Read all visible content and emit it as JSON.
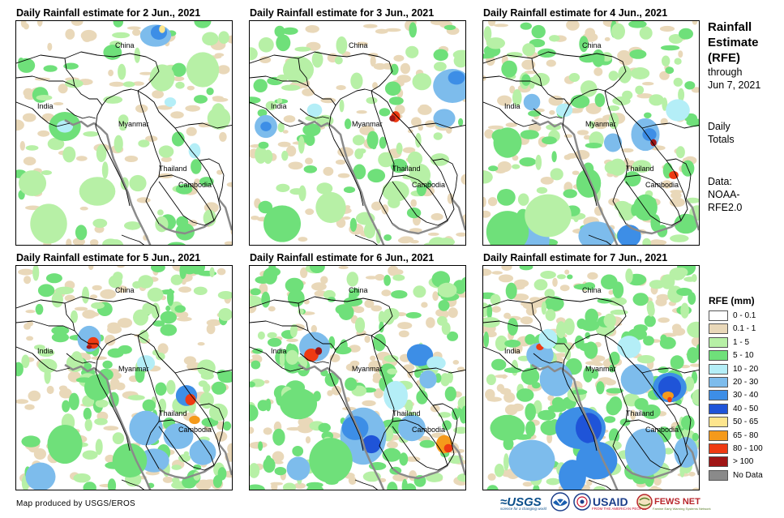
{
  "panels": [
    {
      "title": "Daily Rainfall estimate for 2 Jun., 2021",
      "intensity": 0
    },
    {
      "title": "Daily Rainfall estimate for 3 Jun., 2021",
      "intensity": 1
    },
    {
      "title": "Daily Rainfall estimate for 4 Jun., 2021",
      "intensity": 2
    },
    {
      "title": "Daily Rainfall estimate for 5 Jun., 2021",
      "intensity": 3
    },
    {
      "title": "Daily Rainfall estimate for 6 Jun., 2021",
      "intensity": 4
    },
    {
      "title": "Daily Rainfall estimate for 7 Jun., 2021",
      "intensity": 5
    }
  ],
  "places": {
    "china": "China",
    "india": "India",
    "myanmar": "Myanmar",
    "thailand": "Thailand",
    "cambodia": "Cambodia"
  },
  "sidebar": {
    "title_line1": "Rainfall",
    "title_line2": "Estimate",
    "title_line3": "(RFE)",
    "through": "through",
    "date": "Jun 7, 2021",
    "daily": "Daily",
    "totals": "Totals",
    "data_label": "Data:",
    "data_source1": "NOAA-",
    "data_source2": "RFE2.0"
  },
  "legend": {
    "title": "RFE (mm)",
    "items": [
      {
        "label": "0 - 0.1",
        "color": "#ffffff"
      },
      {
        "label": "0.1 - 1",
        "color": "#e9d8b9"
      },
      {
        "label": "1 - 5",
        "color": "#b7f0a6"
      },
      {
        "label": "5 - 10",
        "color": "#6fe07a"
      },
      {
        "label": "10 - 20",
        "color": "#b4eef7"
      },
      {
        "label": "20 - 30",
        "color": "#7dbcec"
      },
      {
        "label": "30 - 40",
        "color": "#3d8ee6"
      },
      {
        "label": "40 - 50",
        "color": "#1f54d8"
      },
      {
        "label": "50 - 65",
        "color": "#fde58d"
      },
      {
        "label": "65 - 80",
        "color": "#f59a1b"
      },
      {
        "label": "80 - 100",
        "color": "#ee3a12"
      },
      {
        "label": "> 100",
        "color": "#a01515"
      },
      {
        "label": "No Data",
        "color": "#8a8a8a"
      }
    ]
  },
  "credit": "Map produced by USGS/EROS",
  "logos": {
    "usgs": "≈USGS",
    "usgs_tag": "science for a changing world",
    "usaid": "USAID",
    "usaid_tag": "FROM THE AMERICAN PEOPLE",
    "fews": "FEWS NET",
    "fews_tag": "Famine Early Warning Systems Network"
  }
}
